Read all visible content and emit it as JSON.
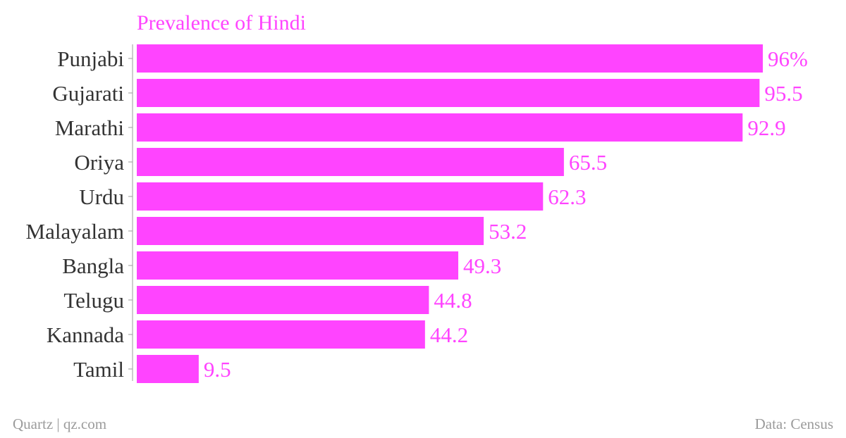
{
  "chart_data": {
    "type": "bar",
    "orientation": "horizontal",
    "title": "Prevalence of Hindi",
    "categories": [
      "Punjabi",
      "Gujarati",
      "Marathi",
      "Oriya",
      "Urdu",
      "Malayalam",
      "Bangla",
      "Telugu",
      "Kannada",
      "Tamil"
    ],
    "values": [
      96,
      95.5,
      92.9,
      65.5,
      62.3,
      53.2,
      49.3,
      44.8,
      44.2,
      9.5
    ],
    "value_labels": [
      "96%",
      "95.5",
      "92.9",
      "65.5",
      "62.3",
      "53.2",
      "49.3",
      "44.8",
      "44.2",
      "9.5"
    ],
    "xlim": [
      0,
      96
    ],
    "grid": false,
    "legend": "none",
    "colors": {
      "bar": "#ff44ff",
      "title": "#ff44ff",
      "value_label": "#ff44ff",
      "category_label": "#333333",
      "axis": "#9b9b9b"
    }
  },
  "footer": {
    "source_left": "Quartz | qz.com",
    "source_right": "Data: Census"
  }
}
